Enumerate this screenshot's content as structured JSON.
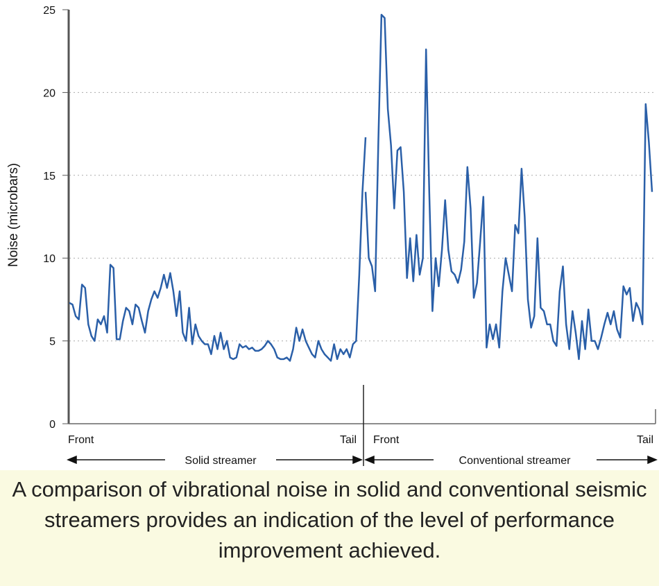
{
  "chart_data": {
    "type": "line",
    "title": "",
    "ylabel": "Noise (microbars)",
    "xlabel": "",
    "ylim": [
      0,
      25
    ],
    "yticks": [
      "0",
      "5",
      "10",
      "15",
      "20",
      "25"
    ],
    "grid": "horizontal dotted",
    "color": "#2a5fa8",
    "segments": [
      {
        "name": "Solid streamer",
        "start_label": "Front",
        "end_label": "Tail",
        "values": [
          7.3,
          7.2,
          6.5,
          6.3,
          8.4,
          8.2,
          6.0,
          5.3,
          5.0,
          6.3,
          6.0,
          6.5,
          5.5,
          9.6,
          9.4,
          5.1,
          5.1,
          6.2,
          7.0,
          6.8,
          6.0,
          7.2,
          7.0,
          6.2,
          5.5,
          6.8,
          7.5,
          8.0,
          7.6,
          8.2,
          9.0,
          8.2,
          9.1,
          8.0,
          6.5,
          8.0,
          5.5,
          5.0,
          7.0,
          4.8,
          6.0,
          5.3,
          5.0,
          4.8,
          4.8,
          4.2,
          5.3,
          4.5,
          5.5,
          4.5,
          5.0,
          4.0,
          3.9,
          4.0,
          4.8,
          4.6,
          4.7,
          4.5,
          4.6,
          4.4,
          4.4,
          4.5,
          4.7,
          5.0,
          4.8,
          4.5,
          4.0,
          3.9,
          3.9,
          4.0,
          3.8,
          4.5,
          5.8,
          5.0,
          5.7,
          5.0,
          4.6,
          4.2,
          4.0,
          5.0,
          4.5,
          4.2,
          4.0,
          3.8,
          4.8,
          3.9,
          4.5,
          4.2,
          4.5,
          4.0,
          4.8,
          5.0,
          9.0,
          14.0,
          17.3
        ]
      },
      {
        "name": "Conventional streamer",
        "start_label": "Front",
        "end_label": "Tail",
        "values": [
          14.0,
          10.0,
          9.5,
          8.0,
          17.0,
          24.7,
          24.5,
          19.0,
          16.8,
          13.0,
          16.5,
          16.7,
          14.0,
          8.8,
          11.2,
          8.6,
          11.4,
          9.0,
          10.0,
          22.6,
          14.0,
          6.8,
          10.0,
          8.3,
          10.5,
          13.5,
          10.5,
          9.2,
          9.0,
          8.5,
          9.3,
          11.0,
          15.5,
          13.0,
          7.6,
          8.5,
          11.0,
          13.7,
          4.6,
          6.0,
          5.1,
          6.0,
          4.6,
          8.0,
          10.0,
          9.0,
          8.0,
          12.0,
          11.5,
          15.4,
          12.5,
          7.5,
          5.8,
          6.5,
          11.2,
          7.0,
          6.8,
          6.0,
          6.0,
          5.0,
          4.7,
          8.0,
          9.5,
          6.0,
          4.5,
          6.8,
          5.5,
          3.9,
          6.2,
          4.5,
          6.9,
          5.0,
          5.0,
          4.5,
          5.2,
          6.0,
          6.7,
          6.0,
          6.8,
          5.7,
          5.2,
          8.3,
          7.8,
          8.2,
          6.2,
          7.3,
          6.9,
          6.0,
          19.3,
          17.0,
          14.0
        ]
      }
    ]
  },
  "caption": "A comparison of vibrational noise in solid and conventional seismic streamers provides an indication of the level of performance improvement achieved."
}
